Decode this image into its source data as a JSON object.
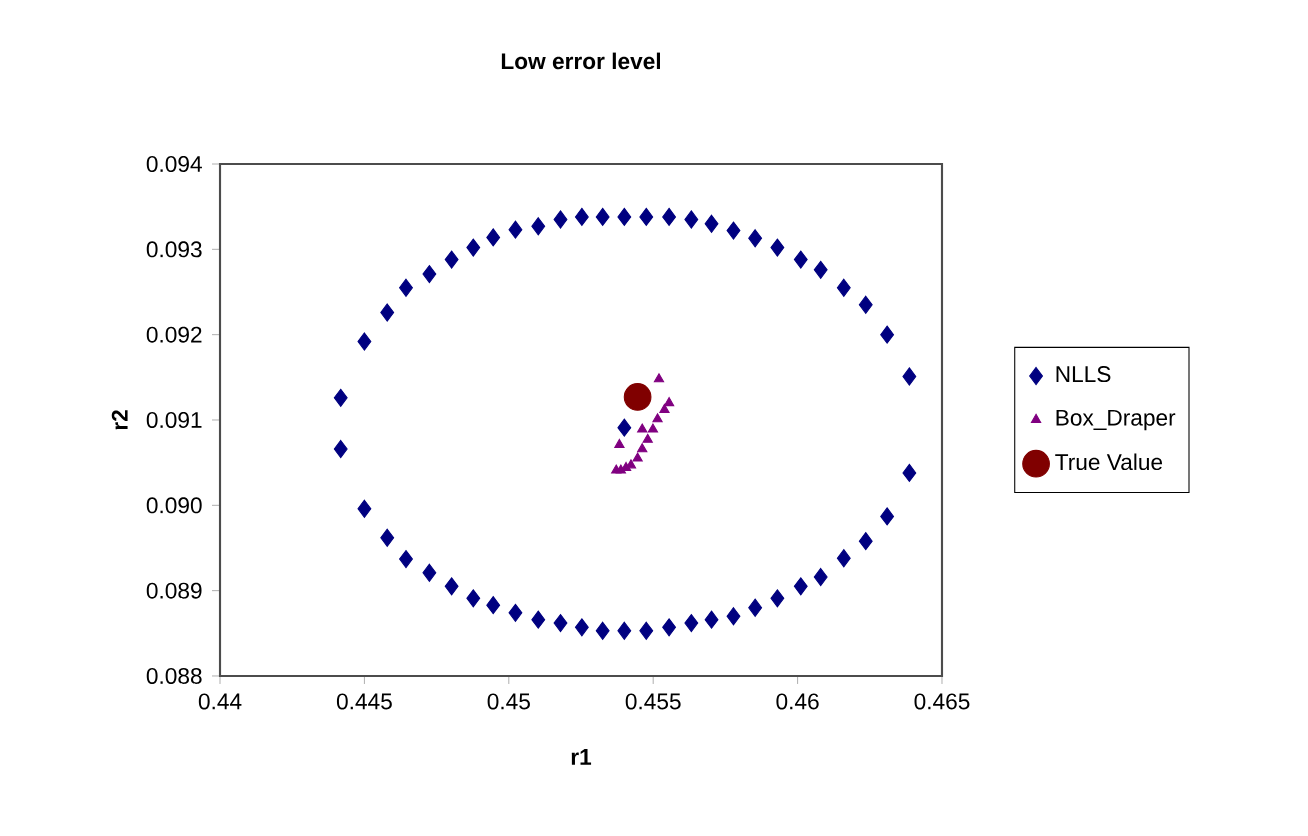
{
  "chart_data": {
    "type": "scatter",
    "title": "Low error level",
    "xlabel": "r1",
    "ylabel": "r2",
    "xlim": [
      0.44,
      0.465
    ],
    "xticks": [
      0.44,
      0.445,
      0.45,
      0.455,
      0.46,
      0.465
    ],
    "ylim": [
      0.088,
      0.094
    ],
    "yticks": [
      {
        "value": 0.088,
        "label": "0.088"
      },
      {
        "value": 0.089,
        "label": "0.089"
      },
      {
        "value": 0.09,
        "label": "0.090"
      },
      {
        "value": 0.091,
        "label": "0.091"
      },
      {
        "value": 0.092,
        "label": "0.092"
      },
      {
        "value": 0.093,
        "label": "0.093"
      },
      {
        "value": 0.094,
        "label": "0.094"
      }
    ],
    "grid": false,
    "legend": "right",
    "series": [
      {
        "name": "NLLS",
        "color": "#000080",
        "marker": "diamond",
        "x": [
          0.44418,
          0.445,
          0.44579,
          0.44644,
          0.44725,
          0.44802,
          0.44877,
          0.44946,
          0.45023,
          0.45102,
          0.45179,
          0.45253,
          0.45325,
          0.454,
          0.45476,
          0.45555,
          0.45632,
          0.45702,
          0.45778,
          0.45853,
          0.4593,
          0.46011,
          0.4608,
          0.4616,
          0.46236,
          0.4631,
          0.46387,
          0.44418,
          0.445,
          0.44579,
          0.44644,
          0.44725,
          0.44802,
          0.44877,
          0.44946,
          0.45023,
          0.45102,
          0.45179,
          0.45253,
          0.45325,
          0.454,
          0.45476,
          0.45555,
          0.45632,
          0.45702,
          0.45778,
          0.45853,
          0.4593,
          0.46011,
          0.4608,
          0.4616,
          0.46236,
          0.4631,
          0.46387,
          0.454
        ],
        "values": [
          0.09126,
          0.09192,
          0.09226,
          0.09255,
          0.09271,
          0.09288,
          0.09302,
          0.09314,
          0.09323,
          0.09327,
          0.09335,
          0.09338,
          0.09338,
          0.09338,
          0.09338,
          0.09338,
          0.09335,
          0.0933,
          0.09322,
          0.09313,
          0.09302,
          0.09288,
          0.09276,
          0.09255,
          0.09235,
          0.092,
          0.09151,
          0.09066,
          0.08996,
          0.08962,
          0.08937,
          0.08921,
          0.08905,
          0.08891,
          0.08883,
          0.08874,
          0.08866,
          0.08862,
          0.08857,
          0.08853,
          0.08853,
          0.08853,
          0.08857,
          0.08862,
          0.08866,
          0.0887,
          0.0888,
          0.08891,
          0.08905,
          0.08916,
          0.08938,
          0.08958,
          0.08987,
          0.09038,
          0.09091
        ]
      },
      {
        "name": "Box_Draper",
        "color": "#800080",
        "marker": "triangle",
        "x": [
          0.45372,
          0.45388,
          0.45406,
          0.45423,
          0.45446,
          0.45462,
          0.45481,
          0.45499,
          0.45515,
          0.45539,
          0.45555,
          0.4552,
          0.45383,
          0.45462
        ],
        "values": [
          0.09041,
          0.09041,
          0.09044,
          0.09047,
          0.09055,
          0.09066,
          0.09077,
          0.09089,
          0.09101,
          0.09112,
          0.0912,
          0.09148,
          0.09071,
          0.09089
        ]
      },
      {
        "name": "True Value",
        "color": "#800000",
        "marker": "circle",
        "x": [
          0.45446
        ],
        "values": [
          0.09127
        ]
      }
    ]
  }
}
